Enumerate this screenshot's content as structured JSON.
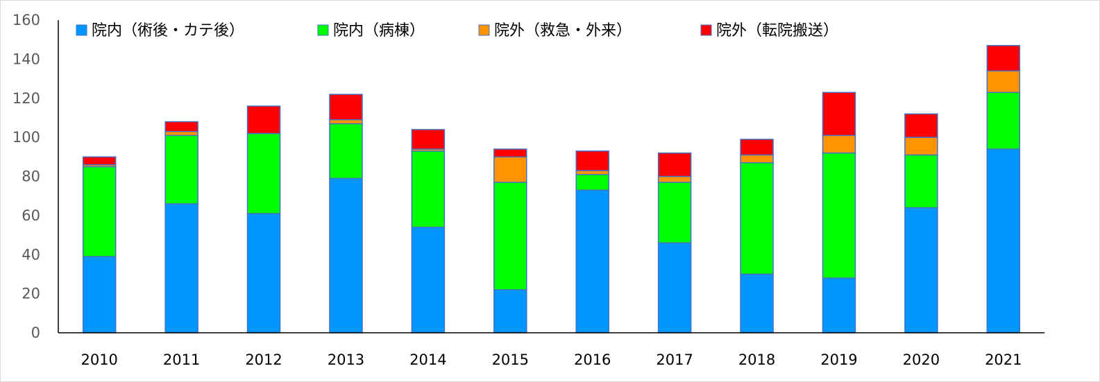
{
  "chart_data": {
    "type": "bar",
    "stacked": true,
    "title": "",
    "xlabel": "",
    "ylabel": "",
    "ylim": [
      0,
      160
    ],
    "yticks": [
      0,
      20,
      40,
      60,
      80,
      100,
      120,
      140,
      160
    ],
    "grid": false,
    "legend_position": "top",
    "categories": [
      "2010",
      "2011",
      "2012",
      "2013",
      "2014",
      "2015",
      "2016",
      "2017",
      "2018",
      "2019",
      "2020",
      "2021"
    ],
    "series": [
      {
        "name": "院内（術後・カテ後）",
        "color": "#0096ff",
        "values": [
          39,
          66,
          61,
          79,
          54,
          22,
          73,
          46,
          30,
          28,
          64,
          94
        ]
      },
      {
        "name": "院内（病棟）",
        "color": "#00ff00",
        "values": [
          46,
          35,
          41,
          28,
          39,
          55,
          8,
          31,
          57,
          64,
          27,
          29
        ]
      },
      {
        "name": "院外（救急・外来）",
        "color": "#ff9400",
        "values": [
          1,
          2,
          0,
          2,
          1,
          13,
          2,
          3,
          4,
          9,
          9,
          11
        ]
      },
      {
        "name": "院外（転院搬送）",
        "color": "#ff0000",
        "values": [
          4,
          5,
          14,
          13,
          10,
          4,
          10,
          12,
          8,
          22,
          12,
          13
        ]
      }
    ],
    "bar_outline_color": "#4472c4",
    "axis_color": "#000000"
  }
}
